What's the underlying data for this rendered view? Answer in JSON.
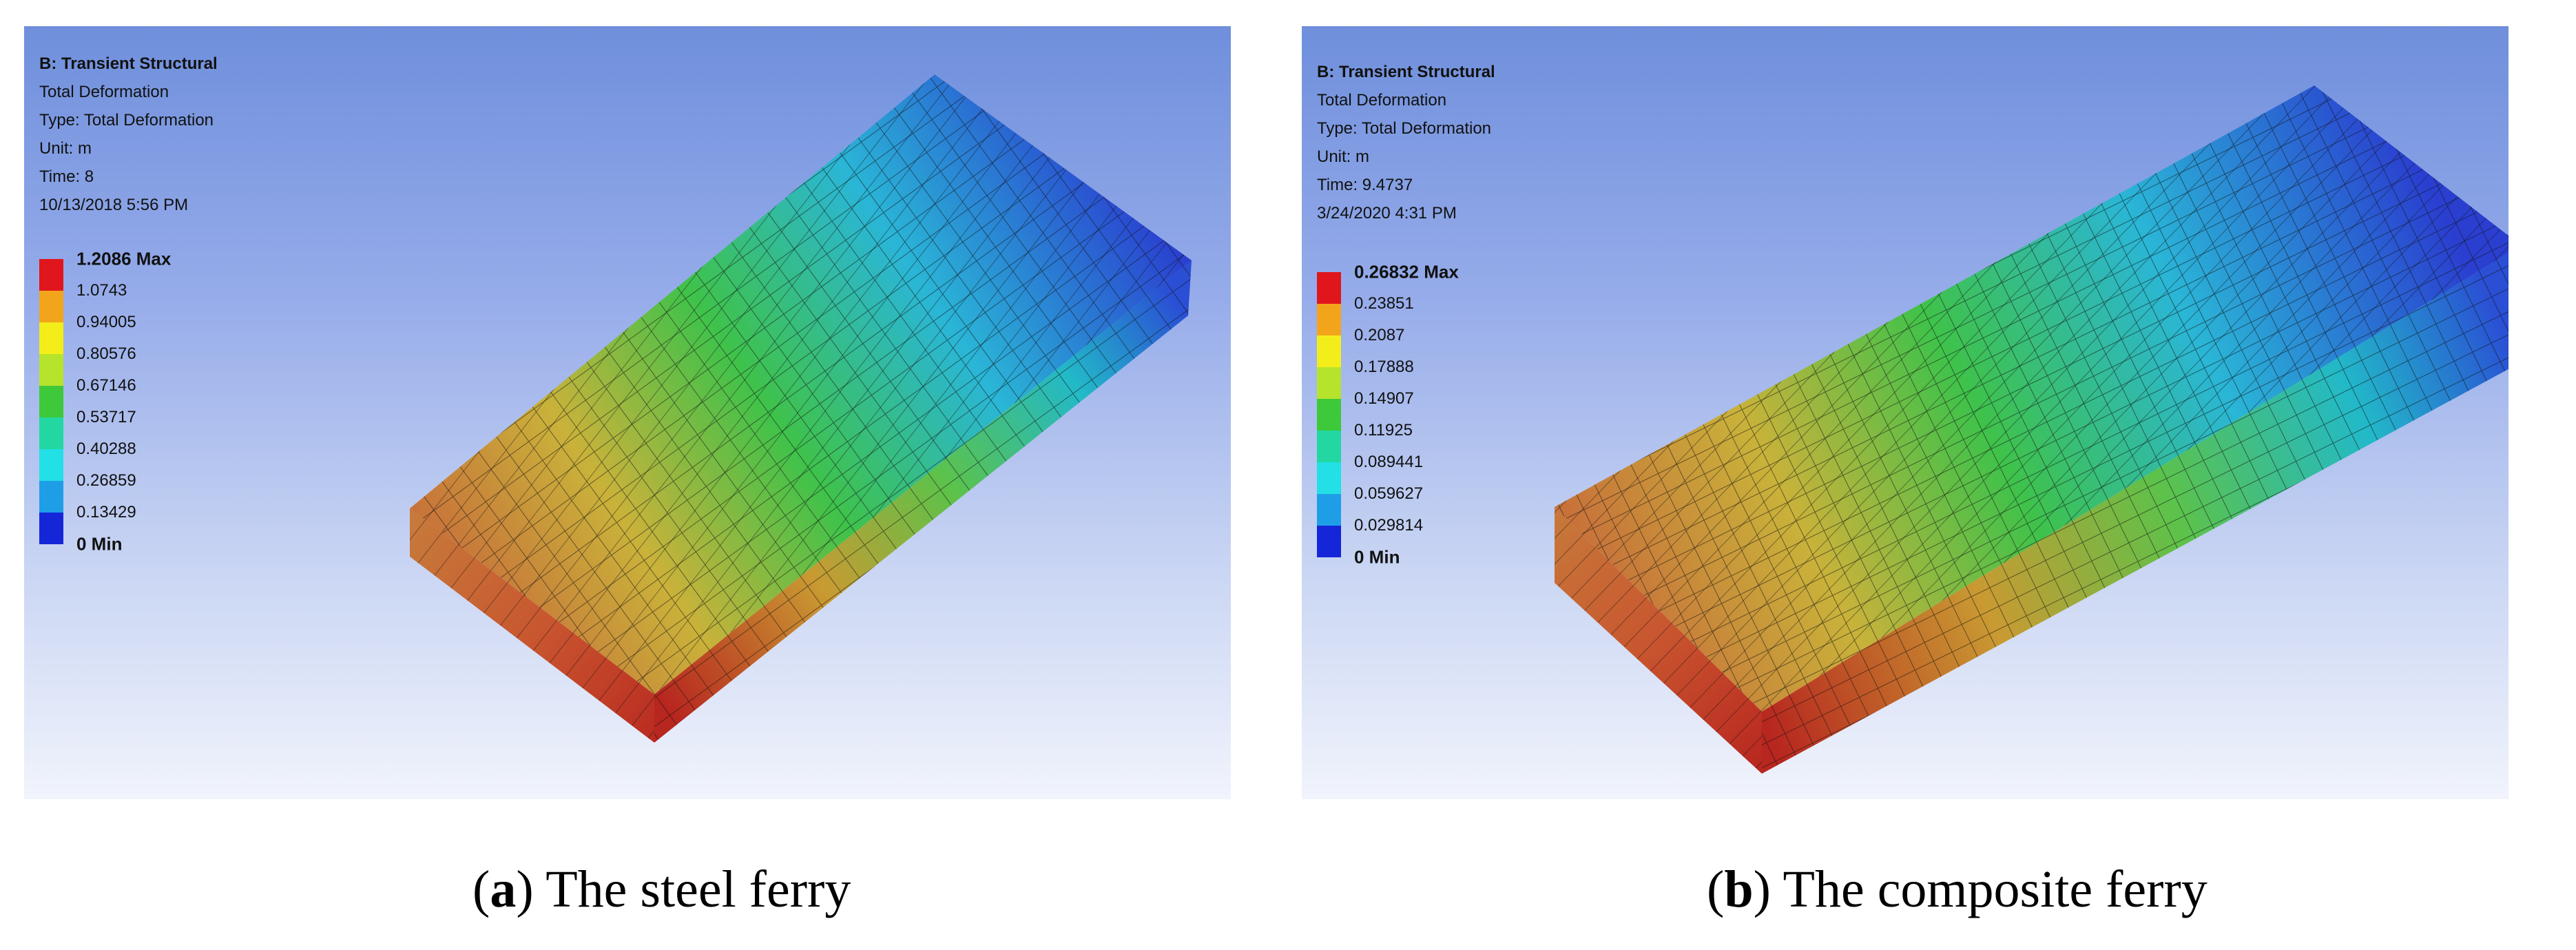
{
  "panels": [
    {
      "header": [
        "B: Transient Structural",
        "Total Deformation",
        "Type: Total Deformation",
        "Unit: m",
        "Time: 8",
        "10/13/2018 5:56 PM"
      ],
      "legend": [
        "1.2086 Max",
        "1.0743",
        "0.94005",
        "0.80576",
        "0.67146",
        "0.53717",
        "0.40288",
        "0.26859",
        "0.13429",
        "0 Min"
      ],
      "caption_letter": "a",
      "caption_text": " The steel ferry"
    },
    {
      "header": [
        "B: Transient Structural",
        "Total Deformation",
        "Type: Total Deformation",
        "Unit: m",
        "Time: 9.4737",
        "3/24/2020 4:31 PM"
      ],
      "legend": [
        "0.26832 Max",
        "0.23851",
        "0.2087",
        "0.17888",
        "0.14907",
        "0.11925",
        "0.089441",
        "0.059627",
        "0.029814",
        "0 Min"
      ],
      "caption_letter": "b",
      "caption_text": " The composite ferry"
    }
  ],
  "legend_colors": [
    "#e0161c",
    "#f2a51a",
    "#f3ee1a",
    "#b6e32b",
    "#3dc93a",
    "#22d7a2",
    "#22e0e6",
    "#1f9ee8",
    "#1526d8"
  ]
}
